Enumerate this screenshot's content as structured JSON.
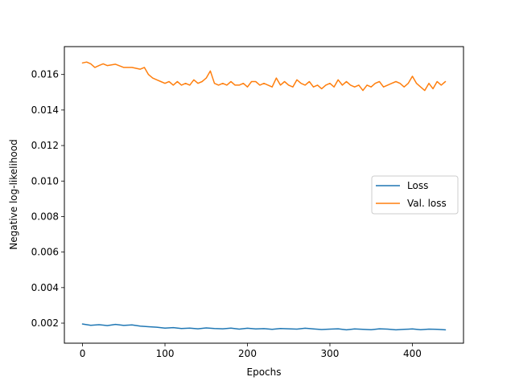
{
  "chart_data": {
    "type": "line",
    "title": "",
    "xlabel": "Epochs",
    "ylabel": "Negative log-likelihood",
    "xlim": [
      -22,
      462
    ],
    "ylim": [
      0.00087,
      0.01757
    ],
    "xticks": [
      0,
      100,
      200,
      300,
      400
    ],
    "yticks": [
      0.002,
      0.004,
      0.006,
      0.008,
      0.01,
      0.012,
      0.014,
      0.016
    ],
    "xtick_labels": [
      "0",
      "100",
      "200",
      "300",
      "400"
    ],
    "ytick_labels": [
      "0.002",
      "0.004",
      "0.006",
      "0.008",
      "0.010",
      "0.012",
      "0.014",
      "0.016"
    ],
    "grid": false,
    "legend_position": "center-right",
    "series": [
      {
        "name": "Loss",
        "color": "#1f77b4",
        "x": [
          0,
          10,
          20,
          30,
          40,
          50,
          60,
          70,
          80,
          90,
          100,
          110,
          120,
          130,
          140,
          150,
          160,
          170,
          180,
          190,
          200,
          210,
          220,
          230,
          240,
          250,
          260,
          270,
          280,
          290,
          300,
          310,
          320,
          330,
          340,
          350,
          360,
          370,
          380,
          390,
          400,
          410,
          420,
          430,
          440
        ],
        "y": [
          0.00195,
          0.00188,
          0.00191,
          0.00186,
          0.00193,
          0.00187,
          0.0019,
          0.00183,
          0.0018,
          0.00177,
          0.00172,
          0.00175,
          0.0017,
          0.00172,
          0.00168,
          0.00173,
          0.0017,
          0.00168,
          0.00172,
          0.00166,
          0.00171,
          0.00167,
          0.00169,
          0.00165,
          0.0017,
          0.00168,
          0.00166,
          0.00171,
          0.00167,
          0.00164,
          0.00166,
          0.00168,
          0.00162,
          0.00167,
          0.00165,
          0.00163,
          0.00168,
          0.00166,
          0.00162,
          0.00165,
          0.00167,
          0.00163,
          0.00166,
          0.00165,
          0.00162
        ]
      },
      {
        "name": "Val. loss",
        "color": "#ff7f0e",
        "x": [
          0,
          5,
          10,
          15,
          20,
          25,
          30,
          40,
          50,
          60,
          70,
          75,
          80,
          85,
          90,
          95,
          100,
          105,
          110,
          115,
          120,
          125,
          130,
          135,
          140,
          145,
          150,
          155,
          160,
          165,
          170,
          175,
          180,
          185,
          190,
          195,
          200,
          205,
          210,
          215,
          220,
          225,
          230,
          235,
          240,
          245,
          250,
          255,
          260,
          265,
          270,
          275,
          280,
          285,
          290,
          295,
          300,
          305,
          310,
          315,
          320,
          325,
          330,
          335,
          340,
          345,
          350,
          355,
          360,
          365,
          370,
          375,
          380,
          385,
          390,
          395,
          400,
          405,
          410,
          415,
          420,
          425,
          430,
          435,
          440
        ],
        "y": [
          0.01665,
          0.0167,
          0.0166,
          0.0164,
          0.0165,
          0.0166,
          0.0165,
          0.01658,
          0.0164,
          0.0164,
          0.0163,
          0.0164,
          0.016,
          0.0158,
          0.0157,
          0.0156,
          0.0155,
          0.0156,
          0.0154,
          0.0156,
          0.0154,
          0.0155,
          0.0154,
          0.0157,
          0.0155,
          0.0156,
          0.0158,
          0.0162,
          0.0155,
          0.0154,
          0.0155,
          0.0154,
          0.0156,
          0.0154,
          0.0154,
          0.0155,
          0.0153,
          0.0156,
          0.0156,
          0.0154,
          0.0155,
          0.0154,
          0.0153,
          0.0158,
          0.0154,
          0.0156,
          0.0154,
          0.0153,
          0.0157,
          0.0155,
          0.0154,
          0.0156,
          0.0153,
          0.0154,
          0.0152,
          0.0154,
          0.0155,
          0.0153,
          0.0157,
          0.0154,
          0.0156,
          0.0154,
          0.0153,
          0.0154,
          0.0151,
          0.0154,
          0.0153,
          0.0155,
          0.0156,
          0.0153,
          0.0154,
          0.0155,
          0.0156,
          0.0155,
          0.0153,
          0.0155,
          0.0159,
          0.0155,
          0.0153,
          0.0151,
          0.0155,
          0.0152,
          0.0156,
          0.0154,
          0.0156
        ]
      }
    ]
  }
}
